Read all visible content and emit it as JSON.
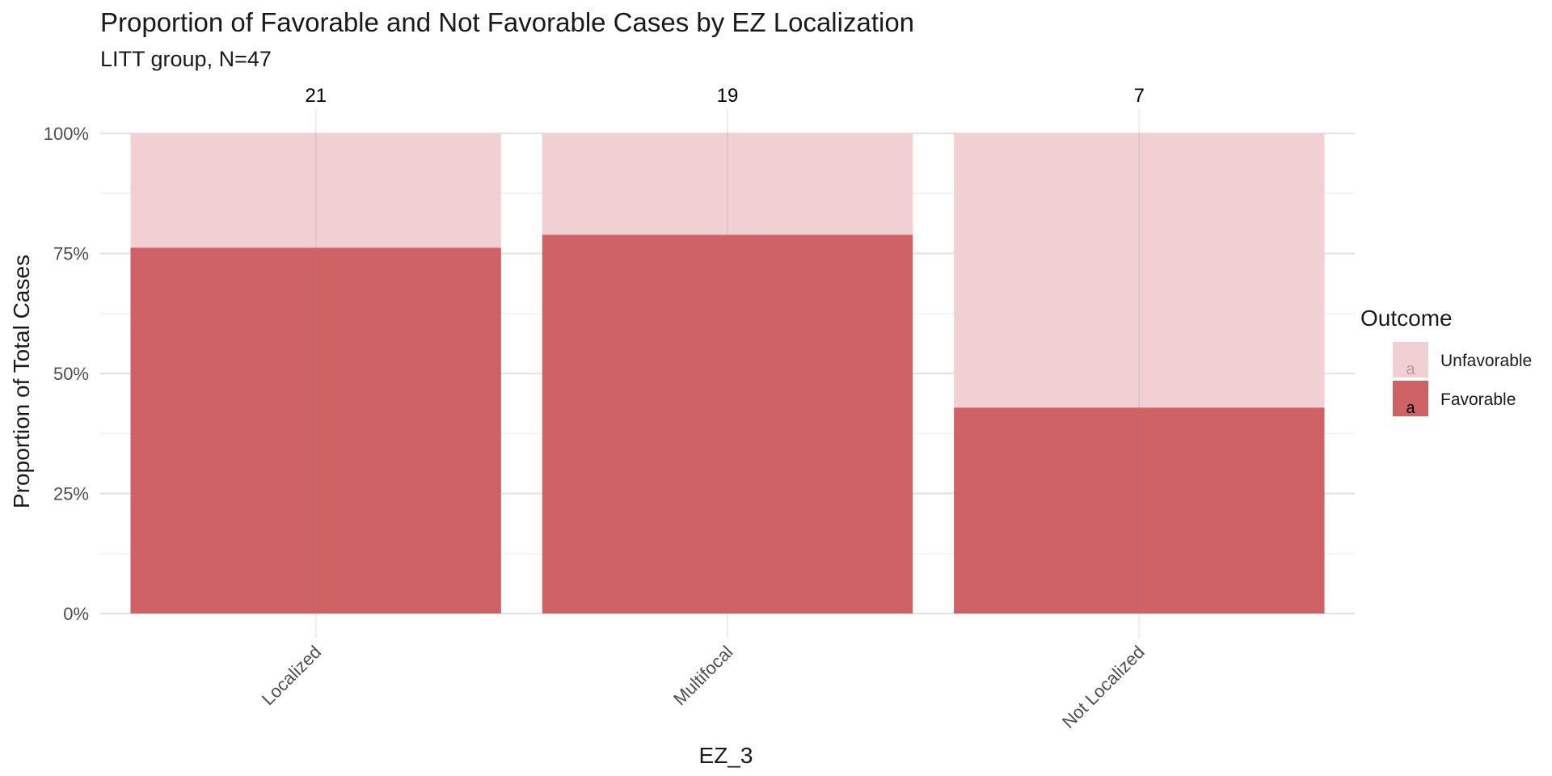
{
  "chart_data": {
    "type": "bar",
    "stacked": true,
    "title": "Proportion of Favorable and Not Favorable Cases by EZ Localization",
    "subtitle": "LITT group, N=47",
    "xlabel": "EZ_3",
    "ylabel": "Proportion of Total Cases",
    "categories": [
      "Localized",
      "Multifocal",
      "Not Localized"
    ],
    "counts": [
      "21",
      "19",
      "7"
    ],
    "series": [
      {
        "name": "Unfavorable",
        "values": [
          0.238,
          0.211,
          0.571
        ],
        "color": "#f0d0d3"
      },
      {
        "name": "Favorable",
        "values": [
          0.762,
          0.789,
          0.429
        ],
        "color": "#cf6265"
      }
    ],
    "ylim": [
      0,
      1
    ],
    "y_ticks": [
      0,
      0.25,
      0.5,
      0.75,
      1
    ],
    "y_tick_labels": [
      "0%",
      "25%",
      "50%",
      "75%",
      "100%"
    ],
    "grid": true,
    "legend": {
      "title": "Outcome",
      "position": "right",
      "items": [
        "Unfavorable",
        "Favorable"
      ],
      "key_glyph": "a"
    }
  }
}
